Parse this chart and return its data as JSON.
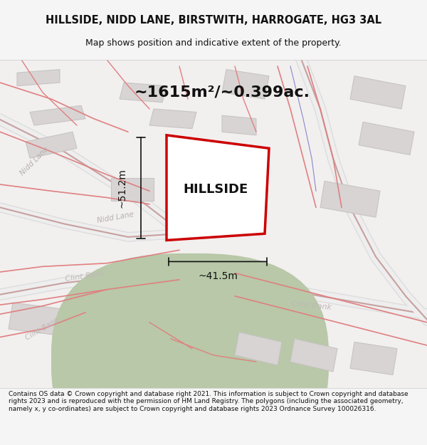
{
  "title_line1": "HILLSIDE, NIDD LANE, BIRSTWITH, HARROGATE, HG3 3AL",
  "title_line2": "Map shows position and indicative extent of the property.",
  "area_text": "~1615m²/~0.399ac.",
  "property_label": "HILLSIDE",
  "dim_vertical": "~51.2m",
  "dim_horizontal": "~41.5m",
  "footer_text": "Contains OS data © Crown copyright and database right 2021. This information is subject to Crown copyright and database rights 2023 and is reproduced with the permission of HM Land Registry. The polygons (including the associated geometry, namely x, y co-ordinates) are subject to Crown copyright and database rights 2023 Ordnance Survey 100026316.",
  "bg_color": "#f5f5f5",
  "map_bg": "#f0eeee",
  "building_color": "#d4d0d0",
  "road_line_color": "#e8c8c8",
  "road_stroke_color": "#c8a0a0",
  "property_fill": "#ffffff",
  "property_edge": "#cc0000",
  "dim_line_color": "#222222",
  "road_label_color": "#aaaaaa",
  "road_label_color2": "#b0b0b0",
  "title_color": "#111111",
  "footer_color": "#111111"
}
